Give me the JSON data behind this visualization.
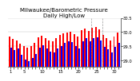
{
  "title": "Milwaukee/Barometric Pressure",
  "subtitle": "Daily High/Low",
  "background_color": "#ffffff",
  "plot_bg_color": "#ffffff",
  "bar_high_color": "#ff0000",
  "bar_low_color": "#0000ff",
  "num_bars": 31,
  "x_labels": [
    "1",
    "",
    "",
    "",
    "5",
    "",
    "",
    "",
    "",
    "10",
    "",
    "",
    "",
    "",
    "15",
    "",
    "",
    "",
    "",
    "20",
    "",
    "",
    "",
    "",
    "25",
    "",
    "",
    "",
    "",
    "30",
    ""
  ],
  "high_values": [
    29.85,
    29.75,
    29.7,
    29.6,
    29.52,
    29.45,
    29.5,
    29.62,
    29.82,
    29.88,
    29.78,
    29.7,
    29.68,
    29.78,
    29.9,
    29.95,
    29.98,
    30.0,
    29.92,
    29.85,
    30.08,
    30.12,
    30.05,
    30.15,
    30.18,
    30.1,
    29.9,
    29.8,
    29.72,
    29.85,
    29.98
  ],
  "low_values": [
    29.45,
    29.38,
    29.42,
    29.2,
    29.05,
    28.98,
    29.08,
    29.22,
    29.45,
    29.55,
    29.42,
    29.32,
    29.28,
    29.42,
    29.52,
    29.62,
    29.68,
    29.65,
    29.52,
    29.42,
    29.68,
    29.78,
    29.68,
    29.8,
    29.82,
    29.72,
    29.48,
    29.4,
    29.3,
    29.48,
    29.62
  ],
  "ylim_low": 28.8,
  "ylim_high": 30.4,
  "yticks": [
    29.0,
    29.5,
    30.0,
    30.5
  ],
  "ytick_labels": [
    "29.0",
    "29.5",
    "30.0",
    "30.5"
  ],
  "title_fontsize": 5.0,
  "tick_fontsize": 3.8,
  "bar_width": 0.42
}
